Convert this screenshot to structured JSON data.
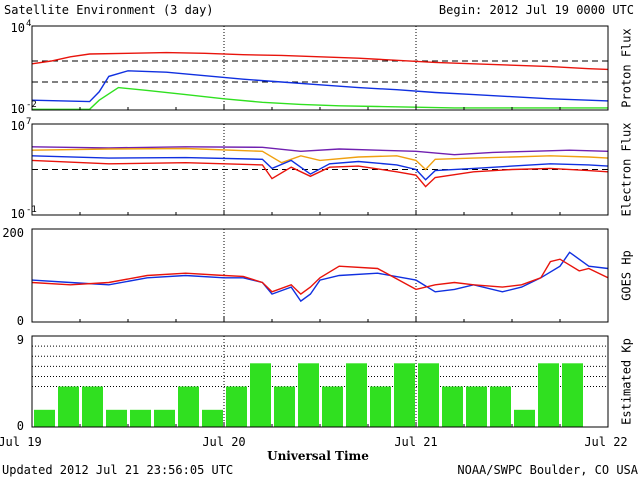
{
  "header": {
    "title": "Satellite Environment (3 day)",
    "begin": "Begin:  2012 Jul 19 0000 UTC"
  },
  "footer": {
    "updated": "Updated 2012 Jul 21 23:56:05 UTC",
    "credit": "NOAA/SWPC Boulder, CO USA"
  },
  "x_axis": {
    "title": "Universal Time",
    "ticks": [
      "Jul 19",
      "Jul 20",
      "Jul 21",
      "Jul 22"
    ],
    "range_days": [
      0,
      3
    ]
  },
  "colors": {
    "red": "#e8140c",
    "blue": "#1030e0",
    "green": "#30e020",
    "orange": "#f0a010",
    "purple": "#7020b0"
  },
  "chart_data": [
    {
      "type": "line",
      "panel": "proton",
      "ylabel": "Proton Flux",
      "y_scale": "log",
      "ylim_exp": [
        -2,
        4
      ],
      "y_ticks": [
        {
          "base": "10",
          "exp": "4"
        },
        {
          "base": "10",
          "exp": "-2"
        }
      ],
      "thresholds_exp": [
        1.5,
        0
      ],
      "series": [
        {
          "color": "red",
          "x": [
            0,
            0.1,
            0.2,
            0.3,
            0.5,
            0.7,
            0.9,
            1.1,
            1.3,
            1.5,
            1.7,
            1.9,
            2.1,
            2.3,
            2.5,
            2.7,
            2.9,
            3.0
          ],
          "y_exp": [
            1.3,
            1.5,
            1.8,
            2.0,
            2.05,
            2.1,
            2.05,
            1.95,
            1.9,
            1.8,
            1.7,
            1.55,
            1.4,
            1.3,
            1.2,
            1.1,
            0.95,
            0.9
          ]
        },
        {
          "color": "blue",
          "x": [
            0,
            0.3,
            0.35,
            0.4,
            0.5,
            0.7,
            0.9,
            1.1,
            1.3,
            1.5,
            1.7,
            1.9,
            2.1,
            2.3,
            2.5,
            2.7,
            2.9,
            3.0
          ],
          "y_exp": [
            -1.3,
            -1.4,
            -0.7,
            0.4,
            0.8,
            0.7,
            0.45,
            0.2,
            0.0,
            -0.2,
            -0.4,
            -0.55,
            -0.75,
            -0.9,
            -1.05,
            -1.2,
            -1.3,
            -1.35
          ]
        },
        {
          "color": "green",
          "x": [
            0,
            0.3,
            0.35,
            0.45,
            0.6,
            0.8,
            1.0,
            1.2,
            1.4,
            1.6,
            1.8,
            2.0,
            2.2,
            2.4,
            2.6,
            2.8,
            3.0
          ],
          "y_exp": [
            -1.95,
            -1.95,
            -1.3,
            -0.4,
            -0.6,
            -0.9,
            -1.2,
            -1.45,
            -1.6,
            -1.7,
            -1.75,
            -1.8,
            -1.85,
            -1.85,
            -1.85,
            -1.85,
            -1.85
          ]
        }
      ]
    },
    {
      "type": "line",
      "panel": "electron",
      "ylabel": "Electron Flux",
      "y_scale": "log",
      "ylim_exp": [
        -1,
        7
      ],
      "y_ticks": [
        {
          "base": "10",
          "exp": "7"
        },
        {
          "base": "10",
          "exp": "-1"
        }
      ],
      "thresholds_exp": [
        3.0
      ],
      "series": [
        {
          "color": "purple",
          "x": [
            0,
            0.4,
            0.8,
            1.2,
            1.4,
            1.6,
            1.8,
            2.0,
            2.2,
            2.4,
            2.6,
            2.8,
            3.0
          ],
          "y_exp": [
            5.0,
            4.9,
            5.0,
            4.95,
            4.6,
            4.8,
            4.7,
            4.6,
            4.3,
            4.5,
            4.6,
            4.7,
            4.6
          ]
        },
        {
          "color": "orange",
          "x": [
            0,
            0.4,
            0.8,
            1.2,
            1.3,
            1.4,
            1.5,
            1.7,
            1.9,
            2.0,
            2.05,
            2.1,
            2.3,
            2.5,
            2.7,
            2.9,
            3.0
          ],
          "y_exp": [
            4.7,
            4.8,
            4.85,
            4.6,
            3.6,
            4.2,
            3.8,
            4.1,
            4.2,
            3.8,
            3.0,
            3.9,
            4.0,
            4.1,
            4.2,
            4.1,
            4.0
          ]
        },
        {
          "color": "blue",
          "x": [
            0,
            0.4,
            0.8,
            1.2,
            1.25,
            1.35,
            1.45,
            1.55,
            1.7,
            1.9,
            2.0,
            2.05,
            2.1,
            2.3,
            2.5,
            2.7,
            2.9,
            3.0
          ],
          "y_exp": [
            4.2,
            4.0,
            4.05,
            3.9,
            3.1,
            3.8,
            2.6,
            3.5,
            3.7,
            3.4,
            3.0,
            2.1,
            2.9,
            3.1,
            3.3,
            3.5,
            3.4,
            3.3
          ]
        },
        {
          "color": "red",
          "x": [
            0,
            0.4,
            0.8,
            1.2,
            1.25,
            1.35,
            1.45,
            1.55,
            1.7,
            1.9,
            2.0,
            2.05,
            2.1,
            2.3,
            2.5,
            2.7,
            2.9,
            3.0
          ],
          "y_exp": [
            3.8,
            3.5,
            3.6,
            3.4,
            2.2,
            3.2,
            2.4,
            3.2,
            3.3,
            2.8,
            2.5,
            1.5,
            2.3,
            2.8,
            3.0,
            3.1,
            2.9,
            2.8
          ]
        }
      ]
    },
    {
      "type": "line",
      "panel": "goes_hp",
      "ylabel": "GOES Hp",
      "ylim": [
        0,
        200
      ],
      "y_ticks": [
        "200",
        "0"
      ],
      "series": [
        {
          "color": "blue",
          "x": [
            0,
            0.2,
            0.4,
            0.6,
            0.8,
            1.0,
            1.1,
            1.2,
            1.25,
            1.35,
            1.4,
            1.45,
            1.5,
            1.6,
            1.8,
            2.0,
            2.1,
            2.2,
            2.3,
            2.45,
            2.55,
            2.65,
            2.75,
            2.8,
            2.9,
            3.0
          ],
          "y": [
            90,
            85,
            80,
            95,
            100,
            95,
            95,
            85,
            60,
            75,
            45,
            60,
            90,
            100,
            105,
            90,
            65,
            70,
            80,
            65,
            75,
            95,
            120,
            150,
            120,
            115
          ]
        },
        {
          "color": "red",
          "x": [
            0,
            0.2,
            0.4,
            0.6,
            0.8,
            1.0,
            1.1,
            1.2,
            1.25,
            1.35,
            1.4,
            1.45,
            1.5,
            1.6,
            1.8,
            2.0,
            2.1,
            2.2,
            2.3,
            2.45,
            2.55,
            2.65,
            2.7,
            2.75,
            2.85,
            2.9,
            3.0
          ],
          "y": [
            85,
            80,
            85,
            100,
            105,
            100,
            98,
            85,
            65,
            80,
            60,
            75,
            95,
            120,
            115,
            70,
            80,
            85,
            80,
            75,
            80,
            95,
            130,
            135,
            110,
            115,
            95
          ]
        }
      ]
    },
    {
      "type": "bar",
      "panel": "kp",
      "ylabel": "Estimated Kp",
      "ylim": [
        0,
        9
      ],
      "y_ticks": [
        "9",
        "0"
      ],
      "dotted_levels": [
        4,
        5,
        6,
        7,
        8
      ],
      "values": [
        1.7,
        4,
        4,
        1.7,
        1.7,
        1.7,
        4,
        1.7,
        4,
        6.3,
        4,
        6.3,
        4,
        6.3,
        4,
        6.3,
        6.3,
        4,
        4,
        4,
        1.7,
        6.3,
        6.3,
        0
      ]
    }
  ]
}
